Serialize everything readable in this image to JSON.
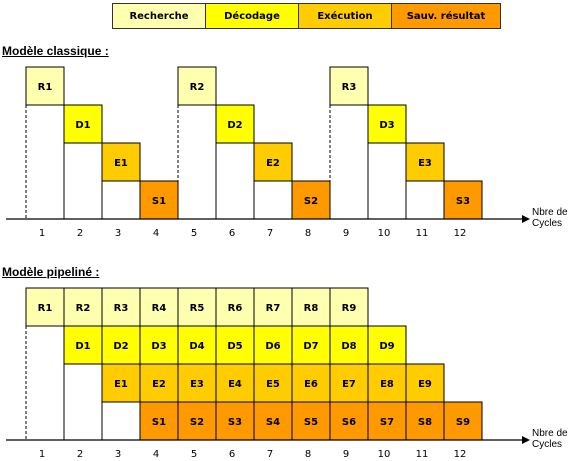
{
  "legend": [
    {
      "label": "Recherche",
      "color": "#ffffb0"
    },
    {
      "label": "Décodage",
      "color": "#ffff00"
    },
    {
      "label": "Exécution",
      "color": "#ffcc00"
    },
    {
      "label": "Sauv. résultat",
      "color": "#ff9900"
    }
  ],
  "stage_colors": [
    "#ffffb0",
    "#ffff00",
    "#ffcc00",
    "#ff9900"
  ],
  "classic": {
    "title": "Modèle classique :",
    "cells": [
      {
        "label": "R1",
        "stage": 0,
        "cycle": 1
      },
      {
        "label": "D1",
        "stage": 1,
        "cycle": 2
      },
      {
        "label": "E1",
        "stage": 2,
        "cycle": 3
      },
      {
        "label": "S1",
        "stage": 3,
        "cycle": 4
      },
      {
        "label": "R2",
        "stage": 0,
        "cycle": 5
      },
      {
        "label": "D2",
        "stage": 1,
        "cycle": 6
      },
      {
        "label": "E2",
        "stage": 2,
        "cycle": 7
      },
      {
        "label": "S2",
        "stage": 3,
        "cycle": 8
      },
      {
        "label": "R3",
        "stage": 0,
        "cycle": 9
      },
      {
        "label": "D3",
        "stage": 1,
        "cycle": 10
      },
      {
        "label": "E3",
        "stage": 2,
        "cycle": 11
      },
      {
        "label": "S3",
        "stage": 3,
        "cycle": 12
      }
    ],
    "axis_ticks": [
      "1",
      "2",
      "3",
      "4",
      "5",
      "6",
      "7",
      "8",
      "9",
      "10",
      "11",
      "12"
    ],
    "axis_label": [
      "Nbre de",
      "Cycles"
    ]
  },
  "pipeline": {
    "title": "Modèle pipeliné :",
    "cells": [
      {
        "label": "R1",
        "stage": 0,
        "cycle": 1
      },
      {
        "label": "R2",
        "stage": 0,
        "cycle": 2
      },
      {
        "label": "R3",
        "stage": 0,
        "cycle": 3
      },
      {
        "label": "R4",
        "stage": 0,
        "cycle": 4
      },
      {
        "label": "R5",
        "stage": 0,
        "cycle": 5
      },
      {
        "label": "R6",
        "stage": 0,
        "cycle": 6
      },
      {
        "label": "R7",
        "stage": 0,
        "cycle": 7
      },
      {
        "label": "R8",
        "stage": 0,
        "cycle": 8
      },
      {
        "label": "R9",
        "stage": 0,
        "cycle": 9
      },
      {
        "label": "D1",
        "stage": 1,
        "cycle": 2
      },
      {
        "label": "D2",
        "stage": 1,
        "cycle": 3
      },
      {
        "label": "D3",
        "stage": 1,
        "cycle": 4
      },
      {
        "label": "D4",
        "stage": 1,
        "cycle": 5
      },
      {
        "label": "D5",
        "stage": 1,
        "cycle": 6
      },
      {
        "label": "D6",
        "stage": 1,
        "cycle": 7
      },
      {
        "label": "D7",
        "stage": 1,
        "cycle": 8
      },
      {
        "label": "D8",
        "stage": 1,
        "cycle": 9
      },
      {
        "label": "D9",
        "stage": 1,
        "cycle": 10
      },
      {
        "label": "E1",
        "stage": 2,
        "cycle": 3
      },
      {
        "label": "E2",
        "stage": 2,
        "cycle": 4
      },
      {
        "label": "E3",
        "stage": 2,
        "cycle": 5
      },
      {
        "label": "E4",
        "stage": 2,
        "cycle": 6
      },
      {
        "label": "E5",
        "stage": 2,
        "cycle": 7
      },
      {
        "label": "E6",
        "stage": 2,
        "cycle": 8
      },
      {
        "label": "E7",
        "stage": 2,
        "cycle": 9
      },
      {
        "label": "E8",
        "stage": 2,
        "cycle": 10
      },
      {
        "label": "E9",
        "stage": 2,
        "cycle": 11
      },
      {
        "label": "S1",
        "stage": 3,
        "cycle": 4
      },
      {
        "label": "S2",
        "stage": 3,
        "cycle": 5
      },
      {
        "label": "S3",
        "stage": 3,
        "cycle": 6
      },
      {
        "label": "S4",
        "stage": 3,
        "cycle": 7
      },
      {
        "label": "S5",
        "stage": 3,
        "cycle": 8
      },
      {
        "label": "S6",
        "stage": 3,
        "cycle": 9
      },
      {
        "label": "S7",
        "stage": 3,
        "cycle": 10
      },
      {
        "label": "S8",
        "stage": 3,
        "cycle": 11
      },
      {
        "label": "S9",
        "stage": 3,
        "cycle": 12
      }
    ],
    "axis_ticks": [
      "1",
      "2",
      "3",
      "4",
      "5",
      "6",
      "7",
      "8",
      "9",
      "10",
      "11",
      "12"
    ],
    "axis_label": [
      "Nbre de",
      "Cycles"
    ]
  }
}
